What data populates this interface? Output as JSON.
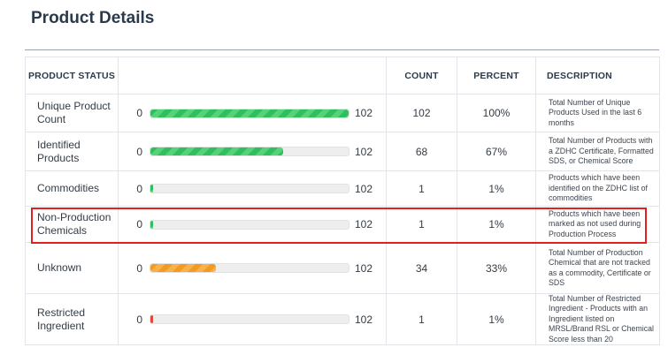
{
  "page": {
    "title": "Product Details"
  },
  "table": {
    "headers": {
      "status": "PRODUCT STATUS",
      "bar": "",
      "count": "COUNT",
      "percent": "PERCENT",
      "description": "DESCRIPTION"
    },
    "rows": [
      {
        "status": "Unique Product Count",
        "bar_min": "0",
        "bar_max": "102",
        "fill_fraction": 1.0,
        "bar_color": "green-striped",
        "count": "102",
        "percent": "100%",
        "description": "Total Number of Unique Products Used in the last 6 months"
      },
      {
        "status": "Identified Products",
        "bar_min": "0",
        "bar_max": "102",
        "fill_fraction": 0.67,
        "bar_color": "green-striped",
        "count": "68",
        "percent": "67%",
        "description": "Total Number of Products with a ZDHC Certificate, Formatted SDS, or Chemical Score"
      },
      {
        "status": "Commodities",
        "bar_min": "0",
        "bar_max": "102",
        "fill_fraction": 0.01,
        "bar_color": "green-striped",
        "count": "1",
        "percent": "1%",
        "description": "Products which have been identified on the ZDHC list of commodities"
      },
      {
        "status": "Non-Production Chemicals",
        "bar_min": "0",
        "bar_max": "102",
        "fill_fraction": 0.01,
        "bar_color": "green-striped",
        "count": "1",
        "percent": "1%",
        "description": "Products which have been marked as not used during Production Process",
        "highlighted": true
      },
      {
        "status": "Unknown",
        "bar_min": "0",
        "bar_max": "102",
        "fill_fraction": 0.33,
        "bar_color": "orange-striped",
        "count": "34",
        "percent": "33%",
        "description": "Total Number of Production Chemical that are not tracked as a commodity, Certificate or SDS"
      },
      {
        "status": "Restricted Ingredient",
        "bar_min": "0",
        "bar_max": "102",
        "fill_fraction": 0.01,
        "bar_color": "red",
        "count": "1",
        "percent": "1%",
        "description": "Total Number of Restricted Ingredient - Products with an Ingredient listed on MRSL/Brand RSL or Chemical Score less than 20"
      }
    ]
  },
  "colors": {
    "title": "#2b3a4b",
    "green": "#2fbf5c",
    "orange": "#f39a1f",
    "red": "#e04a3a",
    "highlight": "#e0221e"
  }
}
